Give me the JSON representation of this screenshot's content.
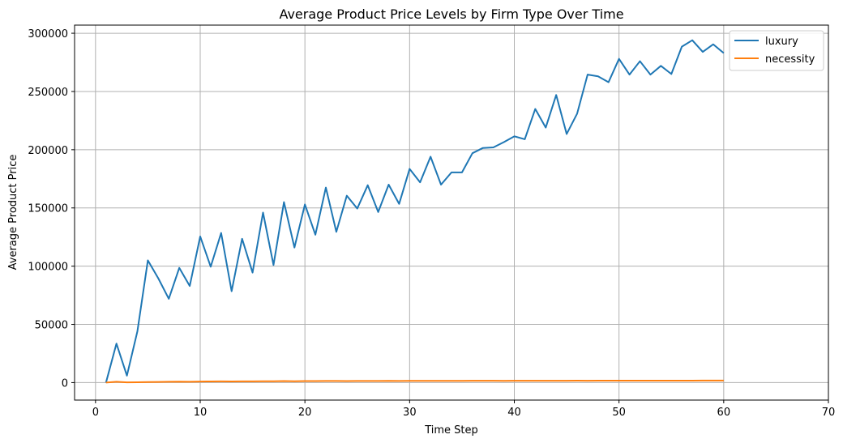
{
  "chart_data": {
    "type": "line",
    "title": "Average Product Price Levels by Firm Type Over Time",
    "xlabel": "Time Step",
    "ylabel": "Average Product Price",
    "xlim": [
      -2,
      70
    ],
    "ylim": [
      -15000,
      307000
    ],
    "xticks": [
      0,
      10,
      20,
      30,
      40,
      50,
      60,
      70
    ],
    "yticks": [
      0,
      50000,
      100000,
      150000,
      200000,
      250000,
      300000
    ],
    "grid": true,
    "legend_position": "top-right",
    "x": [
      1,
      2,
      3,
      4,
      5,
      6,
      7,
      8,
      9,
      10,
      11,
      12,
      13,
      14,
      15,
      16,
      17,
      18,
      19,
      20,
      21,
      22,
      23,
      24,
      25,
      26,
      27,
      28,
      29,
      30,
      31,
      32,
      33,
      34,
      35,
      36,
      37,
      38,
      39,
      40,
      41,
      42,
      43,
      44,
      45,
      46,
      47,
      48,
      49,
      50,
      51,
      52,
      53,
      54,
      55,
      56,
      57,
      58,
      59,
      60
    ],
    "series": [
      {
        "name": "luxury",
        "color": "#1f77b4",
        "values": [
          0,
          33500,
          6000,
          44000,
          105000,
          89500,
          72000,
          98500,
          83000,
          125500,
          99500,
          128500,
          78500,
          123500,
          94500,
          146000,
          101000,
          155000,
          116000,
          153000,
          127000,
          167500,
          129500,
          160500,
          149500,
          169500,
          146500,
          170000,
          153500,
          183500,
          172000,
          194000,
          170000,
          180500,
          180500,
          197000,
          201500,
          202000,
          206500,
          211500,
          209000,
          235000,
          219000,
          247000,
          213500,
          231000,
          264500,
          263000,
          258000,
          278000,
          264500,
          276000,
          264500,
          272000,
          265000,
          288500,
          294000,
          284000,
          290500,
          283000
        ]
      },
      {
        "name": "necessity",
        "color": "#ff7f0e",
        "values": [
          0,
          700,
          200,
          300,
          500,
          600,
          700,
          800,
          700,
          900,
          1000,
          1100,
          1000,
          1100,
          1100,
          1200,
          1200,
          1300,
          1200,
          1300,
          1300,
          1400,
          1400,
          1300,
          1400,
          1400,
          1400,
          1500,
          1400,
          1500,
          1500,
          1500,
          1500,
          1500,
          1500,
          1600,
          1600,
          1600,
          1500,
          1600,
          1600,
          1600,
          1600,
          1600,
          1600,
          1700,
          1600,
          1700,
          1700,
          1700,
          1700,
          1700,
          1700,
          1700,
          1700,
          1700,
          1700,
          1800,
          1800,
          1800
        ]
      }
    ]
  }
}
